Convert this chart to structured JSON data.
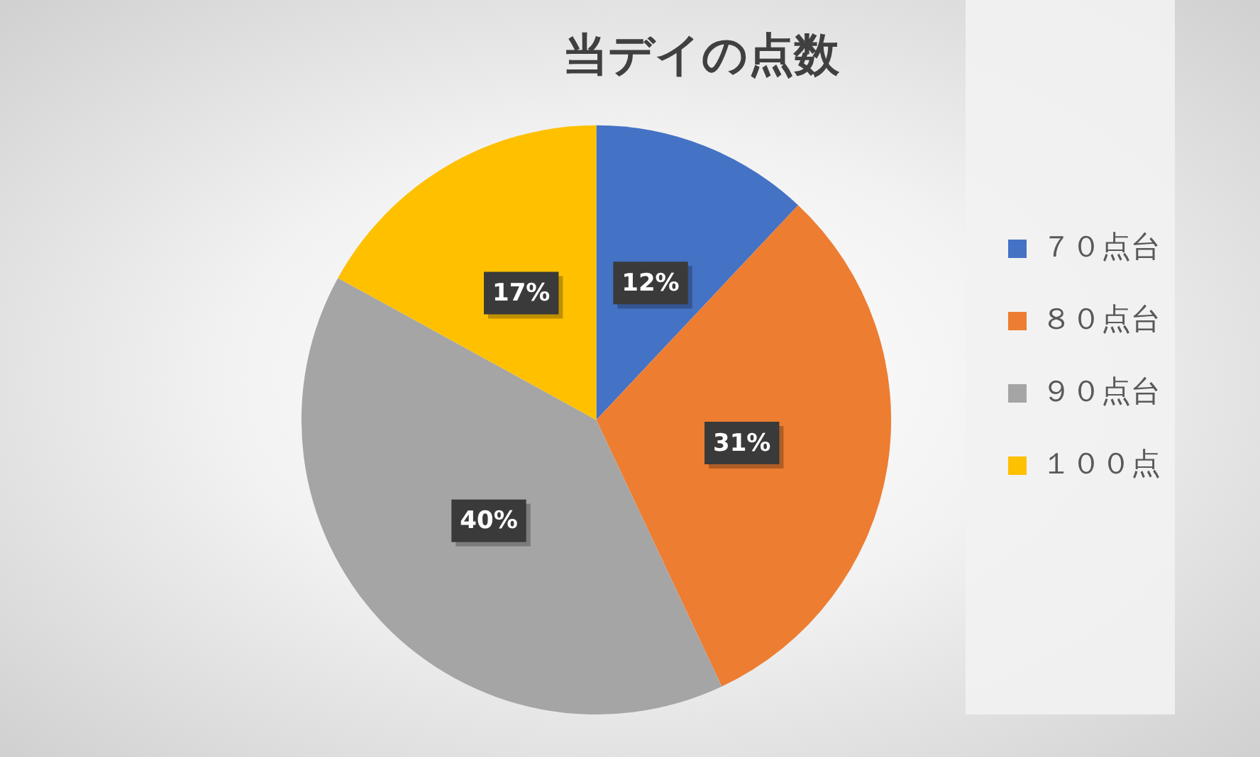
{
  "chart_data": {
    "type": "pie",
    "title": "当デイの点数",
    "categories": [
      "７０点台",
      "８０点台",
      "９０点台",
      "１００点"
    ],
    "values": [
      12,
      31,
      40,
      17
    ],
    "colors": [
      "#4472c4",
      "#ed7d31",
      "#a5a5a5",
      "#ffc000"
    ],
    "value_labels": [
      "12%",
      "31%",
      "40%",
      "17%"
    ],
    "legend": "right"
  }
}
